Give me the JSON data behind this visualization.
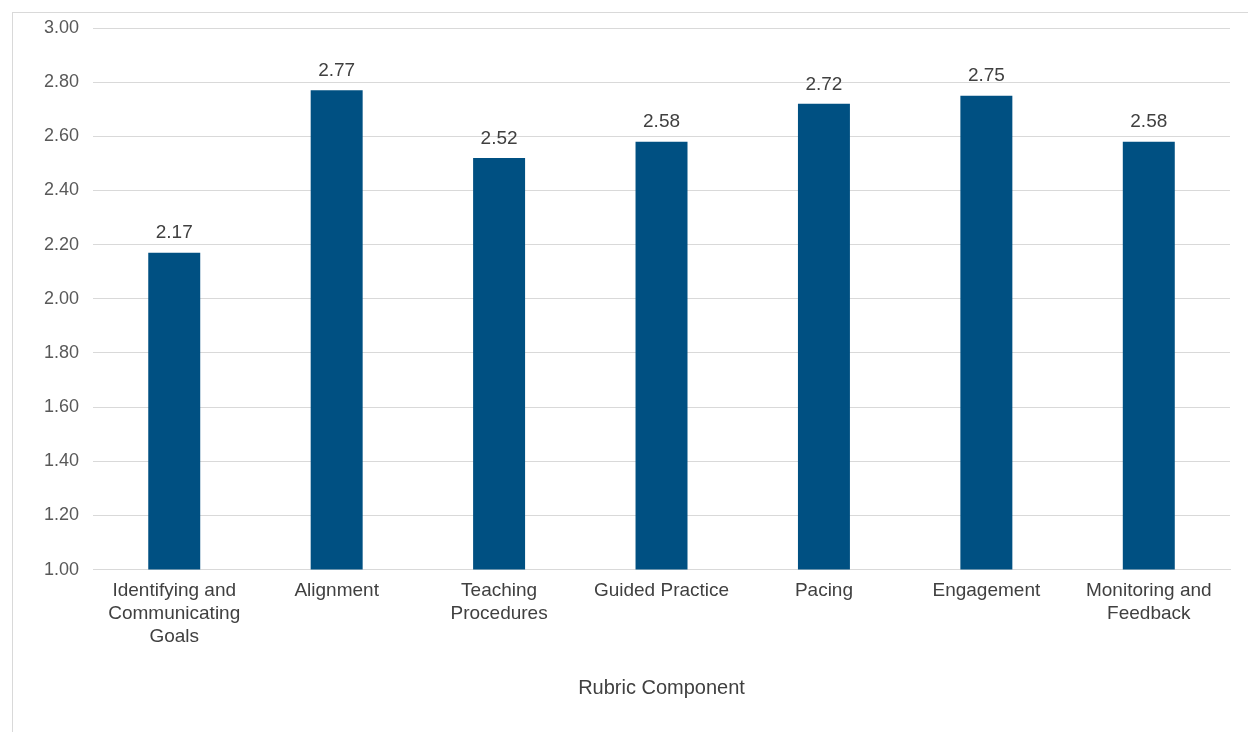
{
  "chart_data": {
    "type": "bar",
    "xlabel": "Rubric Component",
    "categories": [
      "Identifying and Communicating Goals",
      "Alignment",
      "Teaching Procedures",
      "Guided Practice",
      "Pacing",
      "Engagement",
      "Monitoring and Feedback"
    ],
    "values": [
      2.17,
      2.77,
      2.52,
      2.58,
      2.72,
      2.75,
      2.58
    ],
    "color": "#005082",
    "ylim": [
      1,
      3
    ],
    "yticks": [
      {
        "value": 1,
        "label": "1.00"
      },
      {
        "value": 1.2,
        "label": "1.20"
      },
      {
        "value": 1.4,
        "label": "1.40"
      },
      {
        "value": 1.6,
        "label": "1.60"
      },
      {
        "value": 1.8,
        "label": "1.80"
      },
      {
        "value": 2,
        "label": "2.00"
      },
      {
        "value": 2.2,
        "label": "2.20"
      },
      {
        "value": 2.4,
        "label": "2.40"
      },
      {
        "value": 2.6,
        "label": "2.60"
      },
      {
        "value": 2.8,
        "label": "2.80"
      },
      {
        "value": 3,
        "label": "3.00"
      }
    ],
    "grid": "y",
    "legend": false,
    "data_labels": true
  }
}
